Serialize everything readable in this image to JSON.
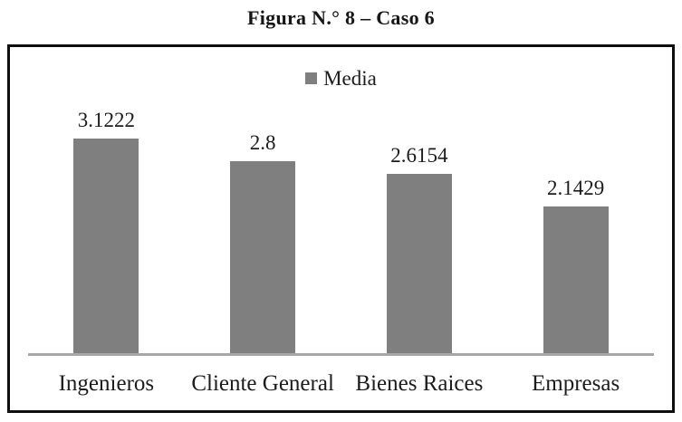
{
  "chart_data": {
    "type": "bar",
    "title": "Figura N.° 8 – Caso 6",
    "categories": [
      "Ingenieros",
      "Cliente General",
      "Bienes Raices",
      "Empresas"
    ],
    "series": [
      {
        "name": "Media",
        "values": [
          3.1222,
          2.8,
          2.6154,
          2.1429
        ]
      }
    ],
    "value_labels": [
      "3.1222",
      "2.8",
      "2.6154",
      "2.1429"
    ],
    "xlabel": "",
    "ylabel": "",
    "ylim": [
      0,
      4.5
    ],
    "grid": false,
    "legend": {
      "position": "top-center",
      "items": [
        {
          "label": "Media",
          "swatch_color": "#7f7f7f"
        }
      ]
    },
    "colors": {
      "bar": "#7f7f7f",
      "axis_line": "#a6a6a6",
      "frame_border": "#0f0f0f",
      "text": "#1c1c1c",
      "background": "#ffffff"
    }
  }
}
